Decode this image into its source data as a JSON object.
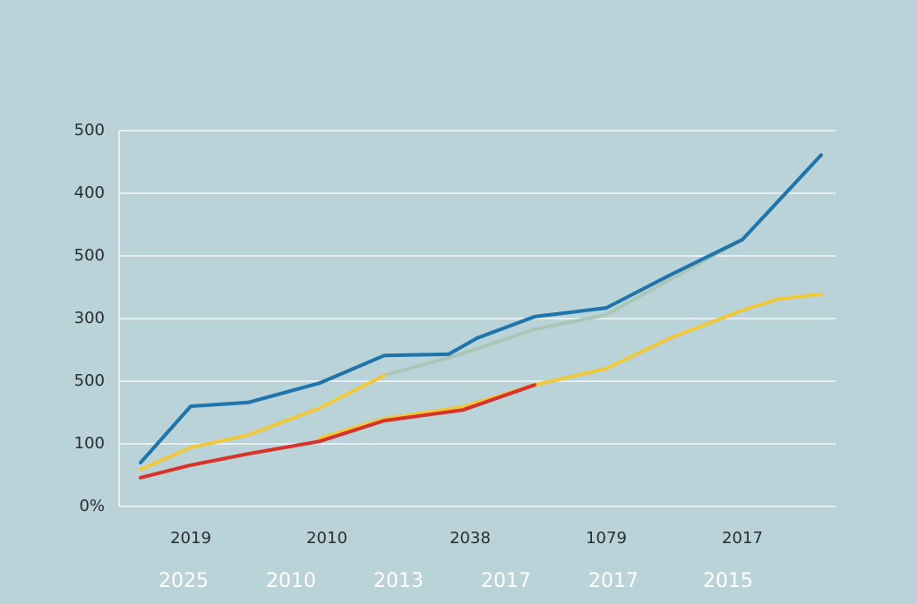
{
  "chart_data": {
    "type": "line",
    "xlim": [
      0,
      100
    ],
    "xticks": [
      {
        "value": 10,
        "label": "2019"
      },
      {
        "value": 29,
        "label": "2010"
      },
      {
        "value": 49,
        "label": "2038"
      },
      {
        "value": 68,
        "label": "1079"
      },
      {
        "value": 87,
        "label": "2017"
      }
    ],
    "xticks_secondary": [
      {
        "value": 9,
        "label": "2025"
      },
      {
        "value": 24,
        "label": "2010"
      },
      {
        "value": 39,
        "label": "2013"
      },
      {
        "value": 54,
        "label": "2017"
      },
      {
        "value": 69,
        "label": "2017"
      },
      {
        "value": 85,
        "label": "2015"
      }
    ],
    "ylim": [
      0,
      600
    ],
    "yticks": [
      {
        "value": 0,
        "label": "0%"
      },
      100,
      {
        "value": 200,
        "label": "500"
      },
      300,
      {
        "value": 400,
        "label": "500"
      },
      {
        "value": 500,
        "label": "400"
      },
      {
        "value": 600,
        "label": "500"
      }
    ],
    "grid": true,
    "series": [
      {
        "color": "#a9c6b8",
        "x": [
          37,
          48,
          58,
          68,
          77,
          86
        ],
        "values": [
          209,
          244,
          283,
          306,
          363,
          420
        ]
      },
      {
        "color": "#f0c83c",
        "x": [
          3,
          10,
          18,
          28,
          37
        ],
        "values": [
          59,
          94,
          114,
          157,
          209
        ]
      },
      {
        "color": "#f0c83c",
        "x": [
          28,
          37,
          48,
          58,
          68,
          77,
          87,
          92,
          98
        ],
        "values": [
          109,
          140,
          159,
          194,
          220,
          269,
          313,
          331,
          339
        ]
      },
      {
        "color": "#d8332a",
        "x": [
          3,
          10,
          18,
          28,
          37,
          48,
          58
        ],
        "values": [
          46,
          66,
          84,
          104,
          137,
          154,
          194
        ]
      },
      {
        "color": "#1f74ab",
        "x": [
          3,
          10,
          18,
          28,
          37,
          46,
          50,
          58,
          68,
          77,
          87,
          98
        ],
        "values": [
          70,
          160,
          166,
          197,
          241,
          243,
          269,
          303,
          317,
          370,
          426,
          561
        ]
      }
    ]
  }
}
